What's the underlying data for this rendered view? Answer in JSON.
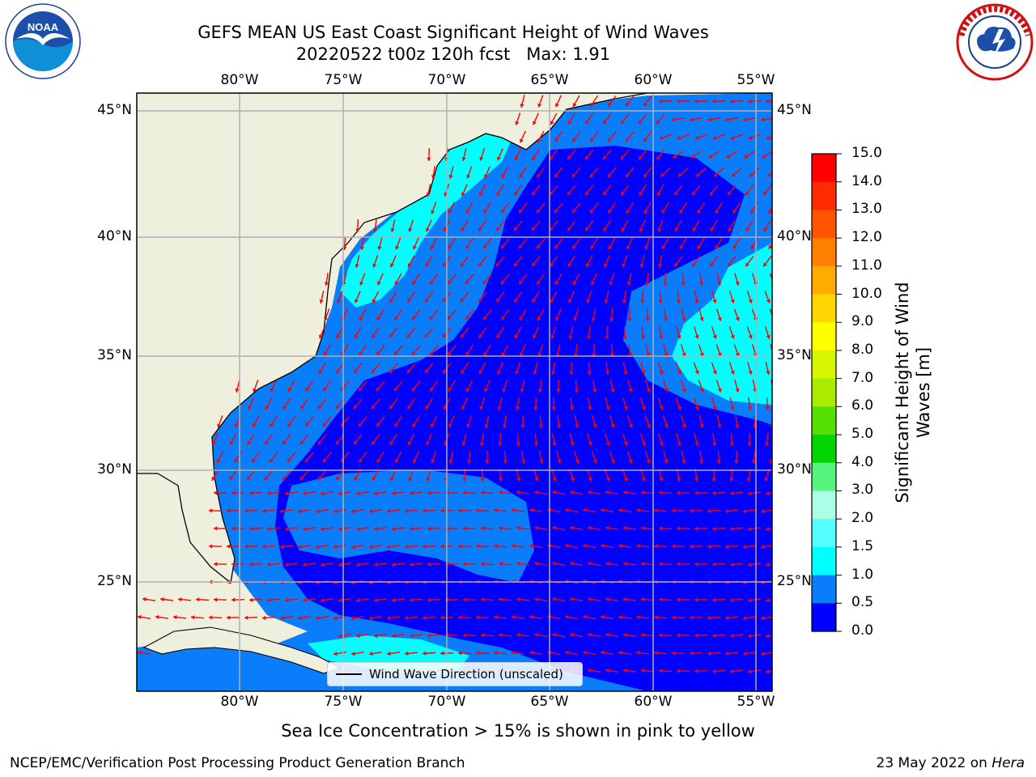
{
  "title_line1": "GEFS MEAN US East Coast Significant Height of Wind Waves",
  "title_line2": "20220522 t00z 120h fcst   Max: 1.91",
  "map": {
    "lon_labels": [
      "80°W",
      "75°W",
      "70°W",
      "65°W",
      "60°W",
      "55°W"
    ],
    "lat_labels": [
      "45°N",
      "40°N",
      "35°N",
      "30°N",
      "25°N"
    ],
    "colors": {
      "land": "#efefde",
      "band_0_0p5": "#0000ff",
      "band_0p5_1p0": "#0a7dfa",
      "band_1p0_1p5": "#00ffff",
      "arrows": "#ff0000",
      "gridlines": "#b0b0b0"
    },
    "legend_label": "Wind Wave Direction (unscaled)"
  },
  "colorbar": {
    "label": "Significant Height of Wind Waves [m]",
    "ticks": [
      "15.0",
      "14.0",
      "13.0",
      "12.0",
      "11.0",
      "10.0",
      "9.0",
      "8.0",
      "7.0",
      "6.0",
      "5.0",
      "4.0",
      "3.0",
      "2.0",
      "1.5",
      "1.0",
      "0.5",
      "0.0"
    ],
    "colors_top_to_bottom": [
      "#ff0000",
      "#ff2a00",
      "#ff5500",
      "#ff8000",
      "#ffab00",
      "#ffd500",
      "#ffff00",
      "#d5f500",
      "#aaeb00",
      "#55e000",
      "#00d500",
      "#55f57d",
      "#aaffe6",
      "#55ffff",
      "#00ffff",
      "#0a7dfa",
      "#0000ff"
    ]
  },
  "logos": {
    "noaa_icon": "noaa-logo",
    "nws_icon": "nws-logo"
  },
  "subtitle": "Sea Ice Concentration > 15% is shown in pink to yellow",
  "footer_left": "NCEP/EMC/Verification Post Processing Product Generation Branch",
  "footer_date": "23 May 2022 on",
  "footer_machine": "Hera"
}
